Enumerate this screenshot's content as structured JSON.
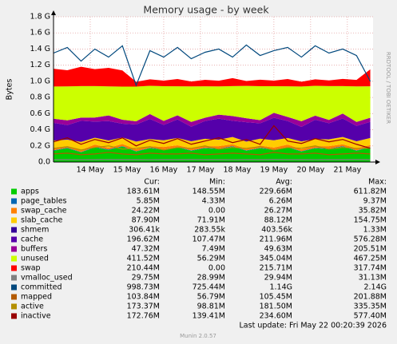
{
  "chart_data": {
    "type": "area",
    "title": "Memory usage - by week",
    "y_label": "Bytes",
    "watermark": "RRDTOOL / TOBI OETIKER",
    "legend_headers": [
      "Cur:",
      "Min:",
      "Avg:",
      "Max:"
    ],
    "footer": "Last update: Fri May 22 00:20:39 2026",
    "version": "Munin 2.0.57",
    "grid": true,
    "xlim": [
      13,
      21.7
    ],
    "xticks": [
      {
        "value": 14,
        "label": "14 May"
      },
      {
        "value": 15,
        "label": "15 May"
      },
      {
        "value": 16,
        "label": "16 May"
      },
      {
        "value": 17,
        "label": "17 May"
      },
      {
        "value": 18,
        "label": "18 May"
      },
      {
        "value": 19,
        "label": "19 May"
      },
      {
        "value": 20,
        "label": "20 May"
      },
      {
        "value": 21,
        "label": "21 May"
      }
    ],
    "ylim": [
      0,
      1.8
    ],
    "yticks": [
      {
        "value": 0,
        "label": "0.0"
      },
      {
        "value": 0.2,
        "label": "0.2 G"
      },
      {
        "value": 0.4,
        "label": "0.4 G"
      },
      {
        "value": 0.6,
        "label": "0.6 G"
      },
      {
        "value": 0.8,
        "label": "0.8 G"
      },
      {
        "value": 1.0,
        "label": "1.0 G"
      },
      {
        "value": 1.2,
        "label": "1.2 G"
      },
      {
        "value": 1.4,
        "label": "1.4 G"
      },
      {
        "value": 1.6,
        "label": "1.6 G"
      },
      {
        "value": 1.8,
        "label": "1.8 G"
      }
    ],
    "x": [
      13,
      13.375,
      13.75,
      14.125,
      14.5,
      14.875,
      15.25,
      15.625,
      16,
      16.375,
      16.75,
      17.125,
      17.5,
      17.875,
      18.25,
      18.625,
      19,
      19.375,
      19.75,
      20.125,
      20.5,
      20.875,
      21.25,
      21.625
    ],
    "series": [
      {
        "name": "apps",
        "color": "#00CC00",
        "style": "area",
        "cur": "183.61M",
        "min": "148.55M",
        "avg": "229.66M",
        "max": "611.82M",
        "values": [
          0.14,
          0.17,
          0.12,
          0.18,
          0.15,
          0.19,
          0.13,
          0.17,
          0.15,
          0.18,
          0.14,
          0.17,
          0.16,
          0.19,
          0.14,
          0.17,
          0.15,
          0.18,
          0.13,
          0.17,
          0.16,
          0.19,
          0.14,
          0.18
        ]
      },
      {
        "name": "page_tables",
        "color": "#0066B3",
        "style": "area",
        "cur": "5.85M",
        "min": "4.33M",
        "avg": "6.26M",
        "max": "9.37M",
        "values": [
          0.006,
          0.007,
          0.005,
          0.006,
          0.007,
          0.006,
          0.005,
          0.006,
          0.007,
          0.006,
          0.005,
          0.006,
          0.007,
          0.006,
          0.005,
          0.006,
          0.007,
          0.006,
          0.005,
          0.006,
          0.007,
          0.006,
          0.005,
          0.006
        ]
      },
      {
        "name": "swap_cache",
        "color": "#FF8000",
        "style": "area",
        "cur": "24.22M",
        "min": "0.00",
        "avg": "26.27M",
        "max": "35.82M",
        "values": [
          0.03,
          0.02,
          0.025,
          0.03,
          0.02,
          0.028,
          0.024,
          0.02,
          0.03,
          0.022,
          0.026,
          0.02,
          0.03,
          0.024,
          0.02,
          0.028,
          0.022,
          0.03,
          0.025,
          0.02,
          0.03,
          0.024,
          0.026,
          0.024
        ]
      },
      {
        "name": "slab_cache",
        "color": "#FFCC00",
        "style": "area",
        "cur": "87.90M",
        "min": "71.91M",
        "avg": "88.12M",
        "max": "154.75M",
        "values": [
          0.09,
          0.08,
          0.1,
          0.085,
          0.09,
          0.08,
          0.095,
          0.088,
          0.082,
          0.09,
          0.086,
          0.092,
          0.08,
          0.09,
          0.088,
          0.085,
          0.09,
          0.082,
          0.095,
          0.088,
          0.084,
          0.09,
          0.086,
          0.088
        ]
      },
      {
        "name": "shmem",
        "color": "#330099",
        "style": "area",
        "cur": "306.41k",
        "min": "283.55k",
        "avg": "403.56k",
        "max": "1.33M",
        "values": [
          0.0003,
          0.0003,
          0.0003,
          0.0003,
          0.0003,
          0.0003,
          0.0003,
          0.0003,
          0.0003,
          0.0003,
          0.0003,
          0.0003,
          0.0003,
          0.0003,
          0.0003,
          0.0003,
          0.0003,
          0.0003,
          0.0003,
          0.0003,
          0.0003,
          0.0003,
          0.0003,
          0.0003
        ]
      },
      {
        "name": "cache",
        "color": "#5500AA",
        "style": "area",
        "cur": "196.62M",
        "min": "107.47M",
        "avg": "211.96M",
        "max": "576.28M",
        "values": [
          0.22,
          0.18,
          0.26,
          0.2,
          0.24,
          0.17,
          0.21,
          0.25,
          0.19,
          0.23,
          0.18,
          0.22,
          0.26,
          0.2,
          0.24,
          0.19,
          0.28,
          0.21,
          0.18,
          0.24,
          0.2,
          0.23,
          0.19,
          0.2
        ]
      },
      {
        "name": "buffers",
        "color": "#990099",
        "style": "area",
        "cur": "47.32M",
        "min": "7.49M",
        "avg": "49.63M",
        "max": "205.51M",
        "values": [
          0.05,
          0.06,
          0.04,
          0.05,
          0.07,
          0.05,
          0.04,
          0.06,
          0.05,
          0.05,
          0.06,
          0.04,
          0.05,
          0.06,
          0.05,
          0.04,
          0.06,
          0.05,
          0.07,
          0.05,
          0.04,
          0.06,
          0.05,
          0.05
        ]
      },
      {
        "name": "unused",
        "color": "#CCFF00",
        "style": "area",
        "cur": "411.52M",
        "min": "56.29M",
        "avg": "345.04M",
        "max": "467.25M",
        "values": [
          0.4,
          0.42,
          0.39,
          0.39,
          0.36,
          0.41,
          0.43,
          0.35,
          0.43,
          0.36,
          0.44,
          0.39,
          0.35,
          0.37,
          0.4,
          0.42,
          0.33,
          0.38,
          0.43,
          0.37,
          0.42,
          0.34,
          0.44,
          0.39
        ]
      },
      {
        "name": "swap",
        "color": "#FF0000",
        "style": "area",
        "cur": "210.44M",
        "min": "0.00",
        "avg": "215.71M",
        "max": "317.74M",
        "values": [
          0.22,
          0.2,
          0.24,
          0.21,
          0.23,
          0.2,
          0.06,
          0.08,
          0.07,
          0.09,
          0.06,
          0.08,
          0.07,
          0.1,
          0.06,
          0.08,
          0.07,
          0.09,
          0.06,
          0.08,
          0.07,
          0.09,
          0.08,
          0.21
        ]
      },
      {
        "name": "vmalloc_used",
        "color": "#808080",
        "style": "line",
        "cur": "29.75M",
        "min": "28.99M",
        "avg": "29.94M",
        "max": "31.13M",
        "values": [
          0.03,
          0.03,
          0.029,
          0.03,
          0.031,
          0.03,
          0.03,
          0.029,
          0.03,
          0.03,
          0.031,
          0.03,
          0.03,
          0.029,
          0.03,
          0.03,
          0.031,
          0.03,
          0.03,
          0.029,
          0.03,
          0.03,
          0.031,
          0.03
        ]
      },
      {
        "name": "committed",
        "color": "#00487D",
        "style": "line",
        "cur": "998.73M",
        "min": "725.44M",
        "avg": "1.14G",
        "max": "2.14G",
        "values": [
          1.35,
          1.42,
          1.25,
          1.4,
          1.3,
          1.44,
          0.95,
          1.38,
          1.3,
          1.42,
          1.28,
          1.36,
          1.4,
          1.3,
          1.45,
          1.32,
          1.38,
          1.42,
          1.3,
          1.44,
          1.35,
          1.4,
          1.32,
          1.0
        ]
      },
      {
        "name": "mapped",
        "color": "#B35A00",
        "style": "line",
        "cur": "103.84M",
        "min": "56.79M",
        "avg": "105.45M",
        "max": "201.88M",
        "values": [
          0.1,
          0.11,
          0.09,
          0.1,
          0.12,
          0.1,
          0.09,
          0.11,
          0.1,
          0.1,
          0.11,
          0.09,
          0.1,
          0.11,
          0.1,
          0.09,
          0.12,
          0.1,
          0.1,
          0.11,
          0.09,
          0.1,
          0.11,
          0.1
        ]
      },
      {
        "name": "active",
        "color": "#B38F00",
        "style": "line",
        "cur": "173.37M",
        "min": "98.81M",
        "avg": "181.50M",
        "max": "335.35M",
        "values": [
          0.17,
          0.19,
          0.15,
          0.18,
          0.2,
          0.16,
          0.17,
          0.19,
          0.15,
          0.18,
          0.17,
          0.2,
          0.16,
          0.18,
          0.17,
          0.19,
          0.15,
          0.18,
          0.17,
          0.2,
          0.16,
          0.18,
          0.17,
          0.17
        ]
      },
      {
        "name": "inactive",
        "color": "#990000",
        "style": "line",
        "cur": "172.76M",
        "min": "139.41M",
        "avg": "234.60M",
        "max": "577.40M",
        "values": [
          0.25,
          0.3,
          0.22,
          0.28,
          0.24,
          0.3,
          0.2,
          0.27,
          0.23,
          0.29,
          0.22,
          0.26,
          0.3,
          0.24,
          0.28,
          0.22,
          0.45,
          0.26,
          0.23,
          0.29,
          0.25,
          0.28,
          0.22,
          0.17
        ]
      }
    ]
  }
}
